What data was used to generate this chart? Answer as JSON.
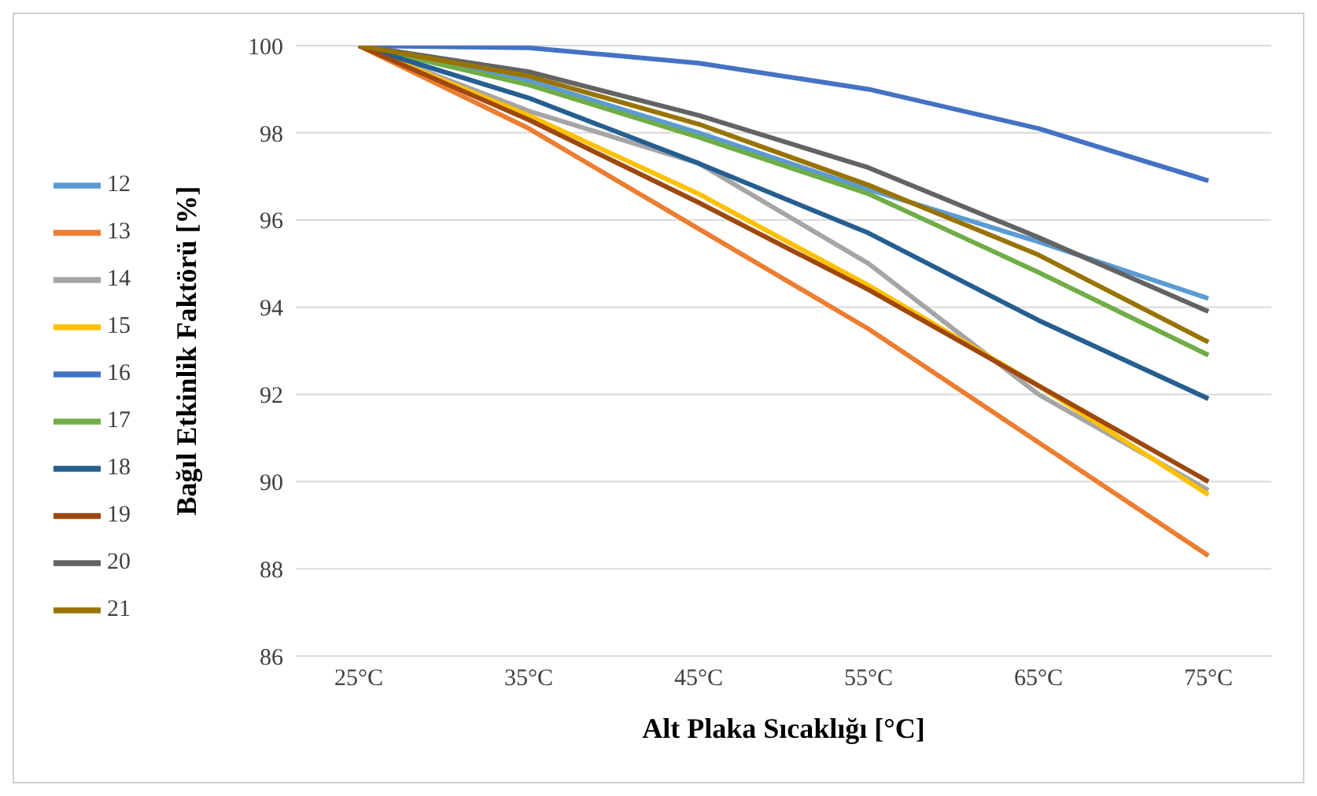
{
  "chart_data": {
    "type": "line",
    "xlabel": "Alt Plaka Sıcaklığı [°C]",
    "ylabel": "Bağıl Etkinlik  Faktörü  [%]",
    "categories": [
      "25°C",
      "35°C",
      "45°C",
      "55°C",
      "65°C",
      "75°C"
    ],
    "series": [
      {
        "name": "12",
        "color": "#5b9bd5",
        "values": [
          100,
          99.2,
          98.0,
          96.7,
          95.5,
          94.2
        ]
      },
      {
        "name": "13",
        "color": "#ed7d31",
        "values": [
          100,
          98.1,
          95.8,
          93.5,
          90.9,
          88.3
        ]
      },
      {
        "name": "14",
        "color": "#a5a5a5",
        "values": [
          100,
          98.5,
          97.3,
          95.0,
          92.0,
          89.8
        ]
      },
      {
        "name": "15",
        "color": "#ffc000",
        "values": [
          100,
          98.4,
          96.6,
          94.5,
          92.2,
          89.7
        ]
      },
      {
        "name": "16",
        "color": "#4472c4",
        "values": [
          100,
          99.95,
          99.6,
          99.0,
          98.1,
          96.9
        ]
      },
      {
        "name": "17",
        "color": "#70ad47",
        "values": [
          100,
          99.1,
          97.9,
          96.6,
          94.8,
          92.9
        ]
      },
      {
        "name": "18",
        "color": "#255e91",
        "values": [
          100,
          98.8,
          97.3,
          95.7,
          93.7,
          91.9
        ]
      },
      {
        "name": "19",
        "color": "#9e480e",
        "values": [
          100,
          98.3,
          96.4,
          94.4,
          92.2,
          90.0
        ]
      },
      {
        "name": "20",
        "color": "#636363",
        "values": [
          100,
          99.4,
          98.4,
          97.2,
          95.6,
          93.9
        ]
      },
      {
        "name": "21",
        "color": "#997300",
        "values": [
          100,
          99.3,
          98.2,
          96.8,
          95.2,
          93.2
        ]
      }
    ],
    "ylim": [
      86,
      100
    ],
    "yticks": [
      86,
      88,
      90,
      92,
      94,
      96,
      98,
      100
    ],
    "grid": "y",
    "legend": "left",
    "marker": "none",
    "line_style": "solid"
  }
}
